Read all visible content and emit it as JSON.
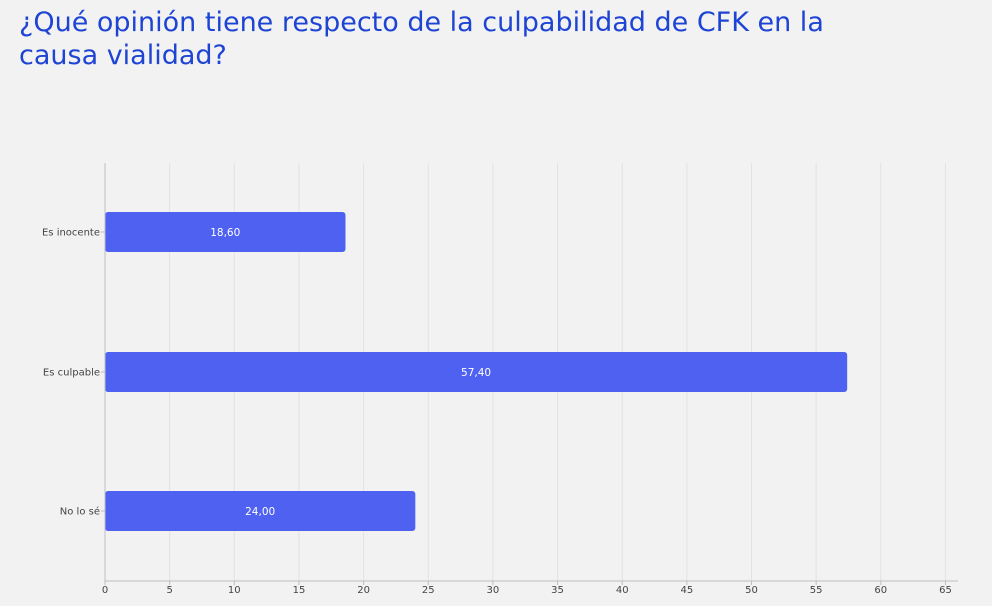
{
  "title": "¿Qué opinión tiene respecto de la culpabilidad de CFK en la causa vialidad?",
  "colors": {
    "title": "#1e44d4",
    "bar": "#4f61f1",
    "background": "#f2f2f3",
    "grid": "#e2e2e4",
    "axis": "#bdbdc2"
  },
  "chart_data": {
    "type": "bar",
    "orientation": "horizontal",
    "categories": [
      "Es inocente",
      "Es culpable",
      "No lo sé"
    ],
    "values": [
      18.6,
      57.4,
      24.0
    ],
    "value_labels": [
      "18,60",
      "57,40",
      "24,00"
    ],
    "xticks": [
      "0",
      "5",
      "10",
      "15",
      "20",
      "25",
      "30",
      "35",
      "40",
      "45",
      "50",
      "55",
      "60",
      "65"
    ],
    "xlim": [
      0,
      66
    ],
    "title": "¿Qué opinión tiene respecto de la culpabilidad de CFK en la causa vialidad?",
    "xlabel": "",
    "ylabel": "",
    "grid": true,
    "legend": "none"
  }
}
